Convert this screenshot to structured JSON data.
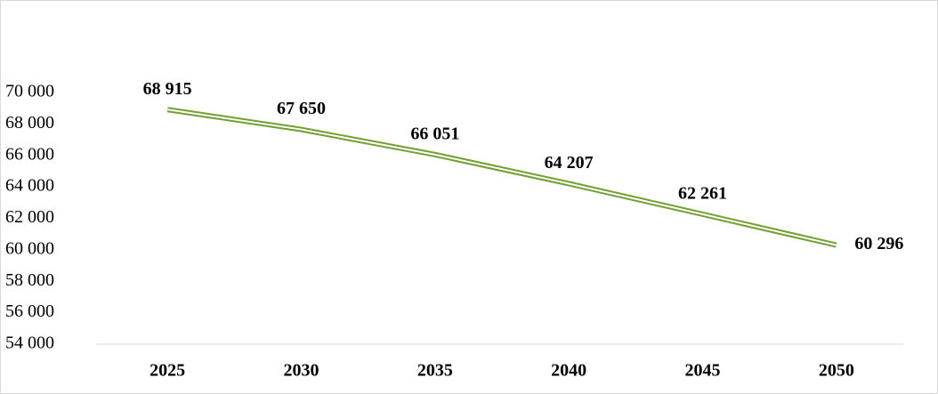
{
  "chart_data": {
    "type": "line",
    "categories": [
      "2025",
      "2030",
      "2035",
      "2040",
      "2045",
      "2050"
    ],
    "series": [
      {
        "color": "#70a030",
        "values": [
          68915,
          67650,
          66051,
          64207,
          62261,
          60296
        ],
        "value_labels": [
          "68 915",
          "67 650",
          "66 051",
          "64 207",
          "62 261",
          "60 296"
        ]
      }
    ],
    "ylim": [
      54000,
      70000
    ],
    "yticks": [
      {
        "value": 54000,
        "label": "54 000"
      },
      {
        "value": 56000,
        "label": "56 000"
      },
      {
        "value": 58000,
        "label": "58 000"
      },
      {
        "value": 60000,
        "label": "60 000"
      },
      {
        "value": 62000,
        "label": "62 000"
      },
      {
        "value": 64000,
        "label": "64 000"
      },
      {
        "value": 66000,
        "label": "66 000"
      },
      {
        "value": 68000,
        "label": "68 000"
      },
      {
        "value": 70000,
        "label": "70 000"
      }
    ],
    "grid": false
  }
}
